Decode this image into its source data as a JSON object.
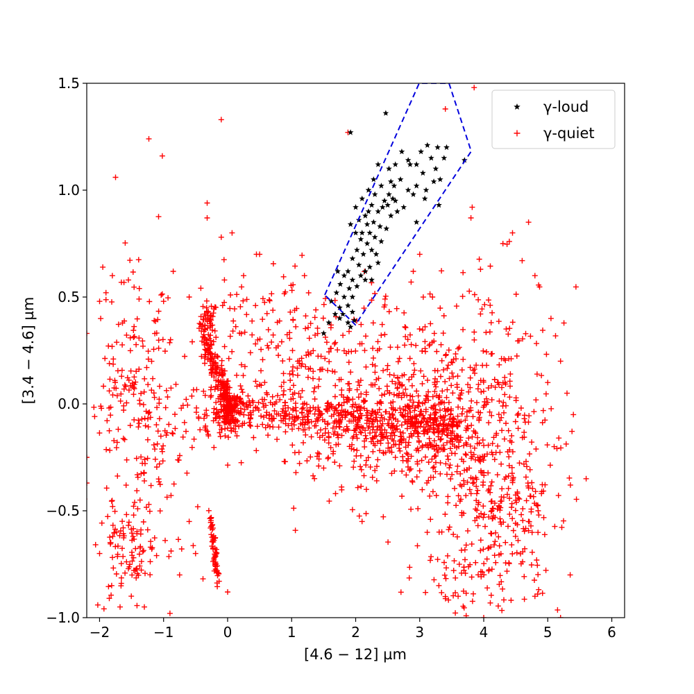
{
  "chart_data": {
    "type": "scatter",
    "xlabel": "[4.6 − 12] µm",
    "ylabel": "[3.4 − 4.6] µm",
    "xlim": [
      -2.2,
      6.2
    ],
    "ylim": [
      -1.0,
      1.5
    ],
    "xticks": [
      -2,
      -1,
      0,
      1,
      2,
      3,
      4,
      5,
      6
    ],
    "xtick_labels": [
      "−2",
      "−1",
      "0",
      "1",
      "2",
      "3",
      "4",
      "5",
      "6"
    ],
    "yticks": [
      -1.0,
      -0.5,
      0.0,
      0.5,
      1.0,
      1.5
    ],
    "ytick_labels": [
      "−1.0",
      "−0.5",
      "0.0",
      "0.5",
      "1.0",
      "1.5"
    ],
    "grid": false,
    "legend_position": "top-right",
    "series": [
      {
        "name": "γ-loud",
        "marker": "star",
        "color": "#000000",
        "points": [
          [
            2.47,
            1.36
          ],
          [
            1.92,
            1.27
          ],
          [
            3.38,
            1.15
          ],
          [
            3.12,
            1.21
          ],
          [
            3.28,
            1.2
          ],
          [
            3.42,
            1.2
          ],
          [
            3.02,
            1.18
          ],
          [
            2.95,
            1.12
          ],
          [
            3.05,
            1.08
          ],
          [
            3.18,
            1.15
          ],
          [
            3.25,
            1.1
          ],
          [
            3.32,
            1.05
          ],
          [
            2.85,
            1.12
          ],
          [
            2.72,
            1.18
          ],
          [
            2.62,
            1.12
          ],
          [
            2.52,
            1.1
          ],
          [
            2.35,
            1.12
          ],
          [
            2.28,
            1.05
          ],
          [
            2.4,
            1.02
          ],
          [
            2.6,
            1.02
          ],
          [
            2.7,
            1.05
          ],
          [
            2.82,
            1.0
          ],
          [
            2.9,
            0.98
          ],
          [
            2.95,
            1.02
          ],
          [
            3.1,
            1.0
          ],
          [
            3.22,
            1.04
          ],
          [
            3.08,
            0.96
          ],
          [
            2.58,
            0.96
          ],
          [
            2.45,
            0.95
          ],
          [
            2.3,
            0.98
          ],
          [
            2.2,
            1.0
          ],
          [
            2.1,
            0.96
          ],
          [
            2.25,
            0.93
          ],
          [
            2.35,
            0.9
          ],
          [
            2.42,
            0.92
          ],
          [
            2.5,
            0.93
          ],
          [
            2.55,
            0.88
          ],
          [
            2.65,
            0.9
          ],
          [
            2.75,
            0.92
          ],
          [
            2.15,
            0.88
          ],
          [
            2.05,
            0.86
          ],
          [
            2.18,
            0.84
          ],
          [
            2.28,
            0.85
          ],
          [
            2.38,
            0.83
          ],
          [
            2.22,
            0.8
          ],
          [
            2.3,
            0.78
          ],
          [
            2.1,
            0.8
          ],
          [
            2.0,
            0.8
          ],
          [
            1.92,
            0.84
          ],
          [
            2.08,
            0.77
          ],
          [
            2.18,
            0.75
          ],
          [
            2.25,
            0.72
          ],
          [
            2.32,
            0.7
          ],
          [
            2.12,
            0.7
          ],
          [
            2.02,
            0.72
          ],
          [
            1.95,
            0.68
          ],
          [
            2.05,
            0.65
          ],
          [
            2.15,
            0.62
          ],
          [
            2.22,
            0.64
          ],
          [
            2.35,
            0.66
          ],
          [
            1.88,
            0.62
          ],
          [
            1.82,
            0.6
          ],
          [
            1.95,
            0.58
          ],
          [
            2.08,
            0.6
          ],
          [
            2.25,
            0.58
          ],
          [
            1.76,
            0.56
          ],
          [
            1.9,
            0.54
          ],
          [
            2.02,
            0.55
          ],
          [
            1.7,
            0.52
          ],
          [
            1.82,
            0.5
          ],
          [
            1.95,
            0.5
          ],
          [
            1.62,
            0.48
          ],
          [
            1.75,
            0.45
          ],
          [
            1.88,
            0.46
          ],
          [
            1.68,
            0.42
          ],
          [
            1.8,
            0.42
          ],
          [
            1.95,
            0.43
          ],
          [
            1.88,
            0.38
          ],
          [
            1.75,
            0.4
          ],
          [
            1.58,
            0.38
          ],
          [
            1.92,
            0.36
          ],
          [
            1.98,
            0.39
          ],
          [
            1.5,
            0.33
          ],
          [
            2.2,
            0.9
          ],
          [
            2.48,
            0.82
          ],
          [
            2.0,
            0.92
          ],
          [
            2.62,
            0.95
          ],
          [
            2.95,
            0.85
          ],
          [
            3.3,
            0.93
          ],
          [
            3.7,
            1.14
          ],
          [
            2.4,
            0.76
          ],
          [
            2.15,
            0.58
          ],
          [
            1.72,
            0.62
          ],
          [
            2.52,
            0.98
          ],
          [
            2.82,
            1.14
          ],
          [
            2.55,
            1.04
          ]
        ]
      },
      {
        "name": "γ-quiet",
        "marker": "plus",
        "color": "#ff0000",
        "clusters": [
          {
            "kind": "blob",
            "cx": -0.3,
            "cy": 0.38,
            "sx": 0.07,
            "sy": 0.05,
            "n": 50
          },
          {
            "kind": "line",
            "x0": -0.38,
            "y0": 0.32,
            "x1": 0.05,
            "y1": -0.02,
            "spread": 0.04,
            "n": 150
          },
          {
            "kind": "blob",
            "cx": 0.0,
            "cy": -0.03,
            "sx": 0.1,
            "sy": 0.06,
            "n": 150
          },
          {
            "kind": "line",
            "x0": 0.0,
            "y0": -0.03,
            "x1": 3.6,
            "y1": -0.1,
            "spread": 0.05,
            "n": 420
          },
          {
            "kind": "blob",
            "cx": 3.0,
            "cy": -0.12,
            "sx": 0.6,
            "sy": 0.14,
            "n": 320
          },
          {
            "kind": "blob",
            "cx": 2.0,
            "cy": -0.05,
            "sx": 0.8,
            "sy": 0.18,
            "n": 220
          },
          {
            "kind": "blob",
            "cx": 3.9,
            "cy": -0.35,
            "sx": 0.5,
            "sy": 0.22,
            "n": 180
          },
          {
            "kind": "blob",
            "cx": 4.4,
            "cy": -0.6,
            "sx": 0.4,
            "sy": 0.18,
            "n": 110
          },
          {
            "kind": "blob",
            "cx": 3.6,
            "cy": -0.75,
            "sx": 0.35,
            "sy": 0.12,
            "n": 50
          },
          {
            "kind": "blob",
            "cx": 4.2,
            "cy": 0.2,
            "sx": 0.5,
            "sy": 0.2,
            "n": 110
          },
          {
            "kind": "blob",
            "cx": 1.0,
            "cy": 0.2,
            "sx": 0.7,
            "sy": 0.15,
            "n": 130
          },
          {
            "kind": "blob",
            "cx": 0.5,
            "cy": 0.45,
            "sx": 0.5,
            "sy": 0.12,
            "n": 40
          },
          {
            "kind": "blob",
            "cx": -1.5,
            "cy": 0.05,
            "sx": 0.35,
            "sy": 0.25,
            "n": 150
          },
          {
            "kind": "blob",
            "cx": -1.6,
            "cy": -0.7,
            "sx": 0.2,
            "sy": 0.14,
            "n": 90
          },
          {
            "kind": "blob",
            "cx": -1.1,
            "cy": -0.3,
            "sx": 0.3,
            "sy": 0.25,
            "n": 70
          },
          {
            "kind": "line",
            "x0": -0.28,
            "y0": -0.5,
            "x1": -0.15,
            "y1": -0.82,
            "spread": 0.025,
            "n": 60
          },
          {
            "kind": "blob",
            "cx": 4.8,
            "cy": -0.3,
            "sx": 0.3,
            "sy": 0.25,
            "n": 50
          },
          {
            "kind": "blob",
            "cx": 2.8,
            "cy": 0.25,
            "sx": 0.6,
            "sy": 0.15,
            "n": 80
          },
          {
            "kind": "blob",
            "cx": -0.5,
            "cy": -0.05,
            "sx": 0.3,
            "sy": 0.08,
            "n": 40
          }
        ],
        "points": [
          [
            -1.75,
            1.06
          ],
          [
            -1.23,
            1.24
          ],
          [
            -1.02,
            1.16
          ],
          [
            -0.1,
            1.33
          ],
          [
            -0.32,
            0.94
          ],
          [
            -0.32,
            0.87
          ],
          [
            0.07,
            0.8
          ],
          [
            -0.1,
            0.78
          ],
          [
            -0.85,
            0.62
          ],
          [
            -1.95,
            0.64
          ],
          [
            -1.8,
            0.6
          ],
          [
            -1.55,
            0.58
          ],
          [
            -1.38,
            0.54
          ],
          [
            -1.9,
            0.52
          ],
          [
            -2.0,
            0.48
          ],
          [
            -1.0,
            0.48
          ],
          [
            0.45,
            0.7
          ],
          [
            0.5,
            0.7
          ],
          [
            1.2,
            0.6
          ],
          [
            1.88,
            1.27
          ],
          [
            3.4,
            1.38
          ],
          [
            3.85,
            1.48
          ],
          [
            3.82,
            0.92
          ],
          [
            3.8,
            0.87
          ],
          [
            4.45,
            0.8
          ],
          [
            4.7,
            0.85
          ],
          [
            4.3,
            0.75
          ],
          [
            4.4,
            0.76
          ],
          [
            3.95,
            0.63
          ],
          [
            4.6,
            0.67
          ],
          [
            4.8,
            0.6
          ],
          [
            5.05,
            0.4
          ],
          [
            5.2,
            0.2
          ],
          [
            5.3,
            0.05
          ],
          [
            5.4,
            -0.05
          ],
          [
            5.6,
            -0.35
          ],
          [
            5.35,
            -0.8
          ],
          [
            5.2,
            -1.0
          ],
          [
            4.8,
            -0.9
          ],
          [
            4.0,
            -1.0
          ],
          [
            3.6,
            -0.9
          ],
          [
            3.3,
            -0.85
          ],
          [
            -2.2,
            -0.25
          ],
          [
            -2.2,
            -0.37
          ],
          [
            -2.0,
            -0.7
          ],
          [
            -1.3,
            -0.95
          ],
          [
            -0.9,
            -0.98
          ],
          [
            -0.75,
            -0.8
          ],
          [
            -0.5,
            -0.7
          ],
          [
            0.0,
            -0.88
          ],
          [
            2.1,
            -0.55
          ],
          [
            1.5,
            -0.3
          ],
          [
            0.9,
            -0.27
          ],
          [
            -0.6,
            -0.55
          ],
          [
            3.0,
            0.7
          ],
          [
            2.9,
            0.62
          ],
          [
            3.2,
            0.5
          ],
          [
            0.25,
            0.6
          ],
          [
            -0.05,
            0.58
          ],
          [
            -0.6,
            0.5
          ],
          [
            4.7,
            -0.55
          ],
          [
            4.85,
            -0.5
          ],
          [
            5.1,
            -0.2
          ],
          [
            5.0,
            0.1
          ],
          [
            -2.2,
            0.33
          ],
          [
            -1.68,
            -0.95
          ]
        ]
      }
    ]
  }
}
